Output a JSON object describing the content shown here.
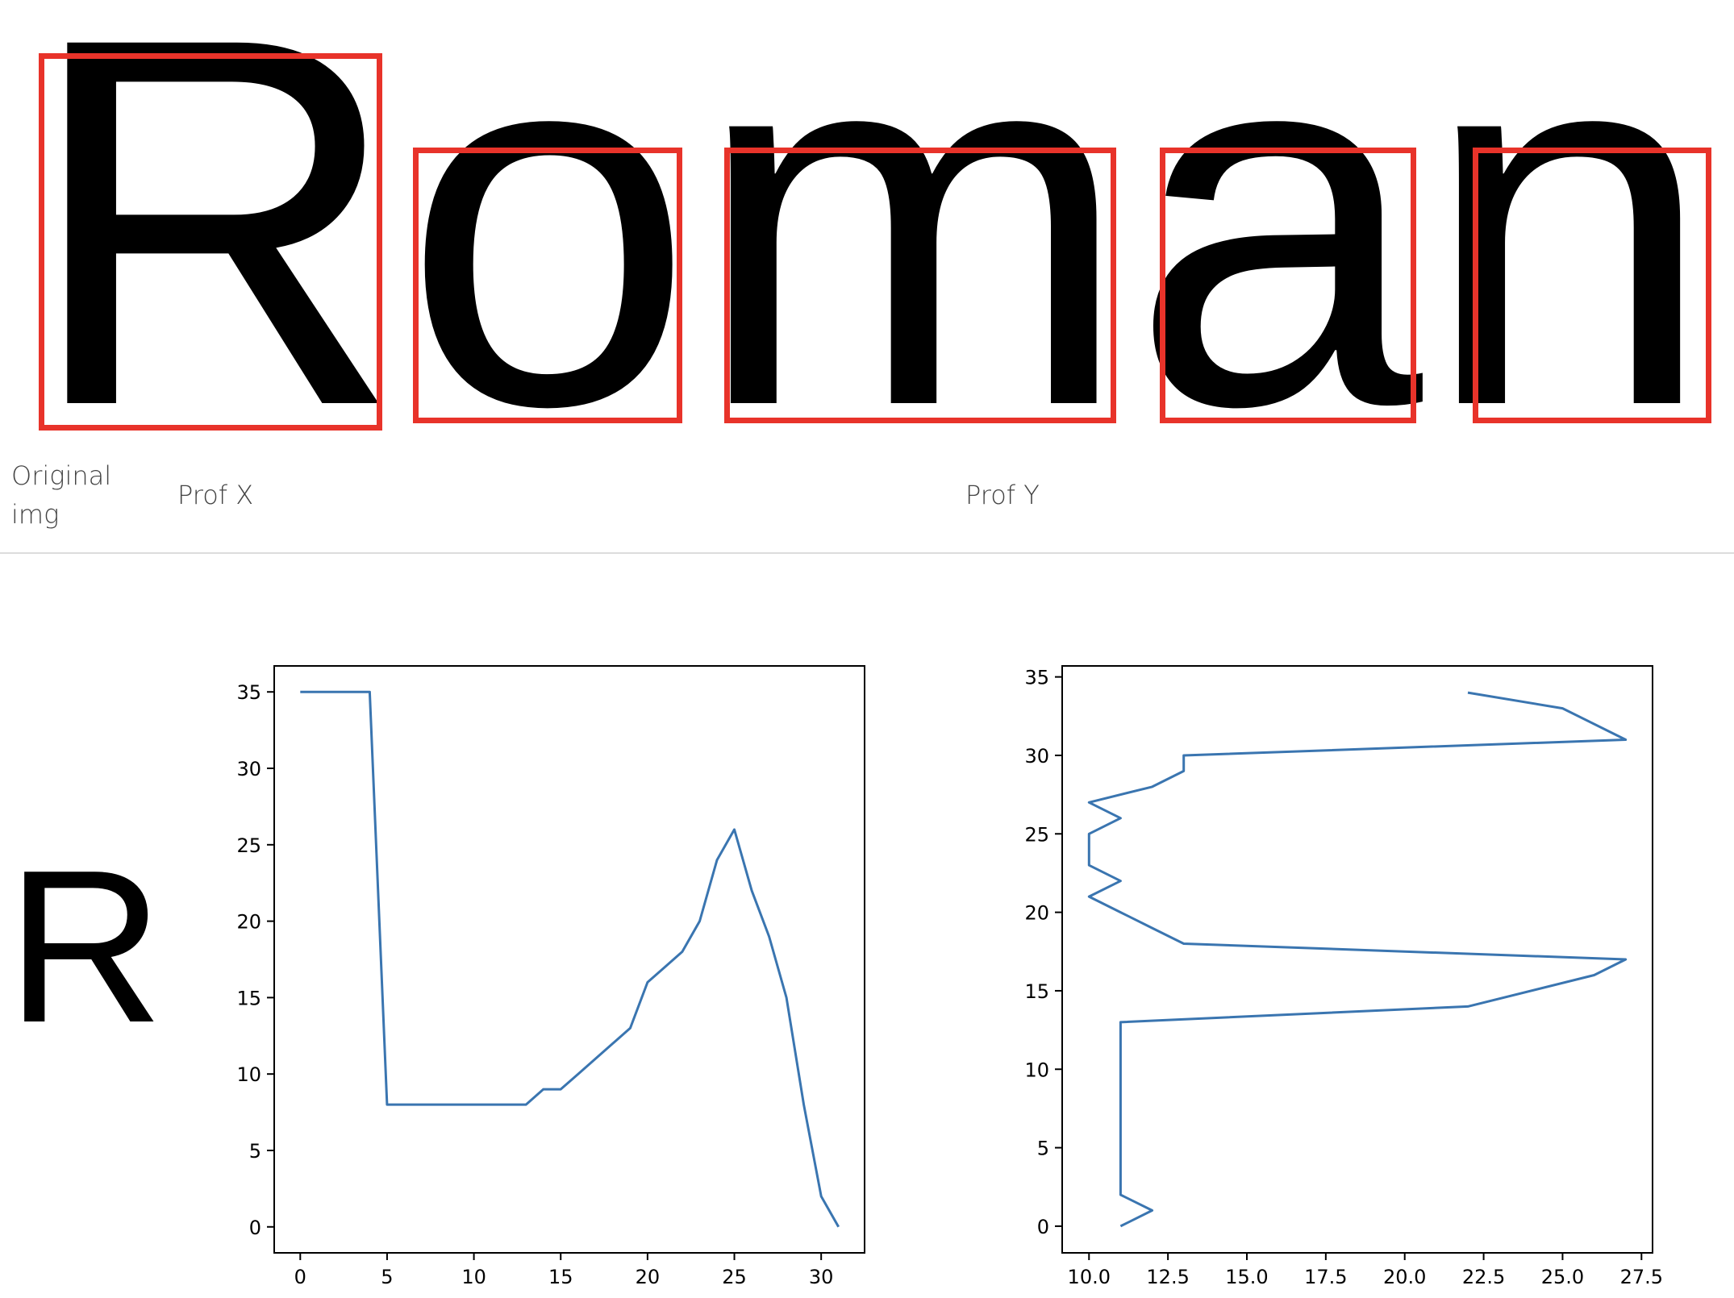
{
  "header_image": {
    "word": "Roman",
    "letters": [
      "R",
      "o",
      "m",
      "a",
      "n"
    ]
  },
  "columns": {
    "original": "Original img",
    "prof_x": "Prof X",
    "prof_y": "Prof Y"
  },
  "sample_glyph": "R",
  "colors": {
    "box": "#e8332a",
    "line": "#3a75b0",
    "divider": "#dcdcdc"
  },
  "chart_data": [
    {
      "type": "line",
      "name": "prof_x",
      "x": [
        0,
        1,
        2,
        3,
        4,
        5,
        6,
        7,
        8,
        9,
        10,
        11,
        12,
        13,
        14,
        15,
        16,
        17,
        18,
        19,
        20,
        21,
        22,
        23,
        24,
        25,
        26,
        27,
        28,
        29,
        30,
        31
      ],
      "y": [
        35,
        35,
        35,
        35,
        35,
        8,
        8,
        8,
        8,
        8,
        8,
        8,
        8,
        8,
        9,
        9,
        10,
        11,
        12,
        13,
        16,
        17,
        18,
        20,
        24,
        26,
        22,
        19,
        15,
        8,
        2,
        0
      ],
      "xlim": [
        -1.5,
        32.5
      ],
      "ylim": [
        -1.7,
        36.7
      ],
      "xticks": [
        0,
        5,
        10,
        15,
        20,
        25,
        30
      ],
      "yticks": [
        0,
        5,
        10,
        15,
        20,
        25,
        30,
        35
      ],
      "xlabel": "",
      "ylabel": "",
      "title": "",
      "grid": false
    },
    {
      "type": "line",
      "name": "prof_y",
      "x": [
        11,
        12,
        11,
        11,
        11,
        11,
        11,
        11,
        11,
        11,
        11,
        11,
        11,
        11,
        22,
        26,
        27,
        13,
        12,
        11,
        10,
        11,
        10,
        10,
        11,
        10,
        12,
        13,
        13,
        27,
        25,
        22
      ],
      "y": [
        0,
        1,
        2,
        3,
        4,
        5,
        6,
        7,
        8,
        9,
        10,
        11,
        12,
        13,
        14,
        16,
        17,
        18,
        19,
        20,
        21,
        22,
        23,
        25,
        26,
        27,
        28,
        29,
        30,
        31,
        33,
        34
      ],
      "xlim": [
        9.15,
        27.85
      ],
      "ylim": [
        -1.7,
        35.7
      ],
      "xticks": [
        10.0,
        12.5,
        15.0,
        17.5,
        20.0,
        22.5,
        25.0,
        27.5
      ],
      "yticks": [
        0,
        5,
        10,
        15,
        20,
        25,
        30,
        35
      ],
      "xlabel": "",
      "ylabel": "",
      "title": "",
      "grid": false
    }
  ]
}
